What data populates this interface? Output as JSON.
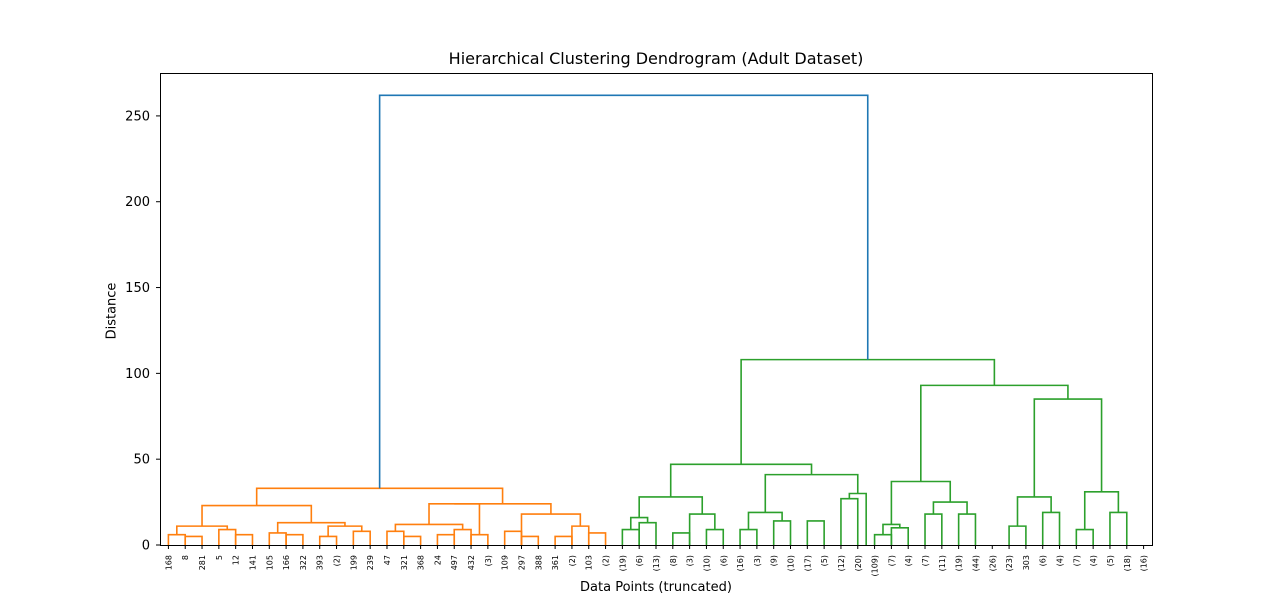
{
  "chart_data": {
    "type": "dendrogram",
    "title": "Hierarchical Clustering Dendrogram (Adult Dataset)",
    "xlabel": "Data Points (truncated)",
    "ylabel": "Distance",
    "ylim": [
      0,
      275
    ],
    "yticks": [
      0,
      50,
      100,
      150,
      200,
      250
    ],
    "grid": false,
    "leaves": [
      "168",
      "8",
      "281",
      "5",
      "12",
      "141",
      "105",
      "166",
      "322",
      "393",
      "(2)",
      "199",
      "239",
      "47",
      "321",
      "368",
      "24",
      "497",
      "432",
      "(3)",
      "109",
      "297",
      "388",
      "361",
      "(2)",
      "103",
      "(2)",
      "(19)",
      "(6)",
      "(13)",
      "(8)",
      "(3)",
      "(10)",
      "(6)",
      "(16)",
      "(3)",
      "(9)",
      "(10)",
      "(17)",
      "(5)",
      "(12)",
      "(20)",
      "(109)",
      "(7)",
      "(4)",
      "(7)",
      "(11)",
      "(19)",
      "(44)",
      "(26)",
      "(23)",
      "303",
      "(6)",
      "(4)",
      "(7)",
      "(4)",
      "(5)",
      "(18)",
      "(16)"
    ],
    "colors": {
      "left_cluster": "#ff7f0e",
      "right_cluster": "#2ca02c",
      "root": "#1f77b4"
    },
    "merges": [
      {
        "cluster": "left_cluster",
        "l": 0,
        "r": 1,
        "h": 6
      },
      {
        "cluster": "left_cluster",
        "l": 1,
        "r": 2,
        "h": 5
      },
      {
        "cluster": "left_cluster",
        "l": 3,
        "r": 4,
        "h": 9
      },
      {
        "cluster": "left_cluster",
        "l": 4,
        "r": 5,
        "h": 6
      },
      {
        "cluster": "left_cluster",
        "l": 0.5,
        "r": 3.5,
        "h": 11
      },
      {
        "cluster": "left_cluster",
        "l": 6,
        "r": 7,
        "h": 7
      },
      {
        "cluster": "left_cluster",
        "l": 7,
        "r": 8,
        "h": 6
      },
      {
        "cluster": "left_cluster",
        "l": 9,
        "r": 10,
        "h": 5
      },
      {
        "cluster": "left_cluster",
        "l": 11,
        "r": 12,
        "h": 8
      },
      {
        "cluster": "left_cluster",
        "l": 9.5,
        "r": 11.5,
        "h": 11
      },
      {
        "cluster": "left_cluster",
        "l": 6.5,
        "r": 10.5,
        "h": 13
      },
      {
        "cluster": "left_cluster",
        "l": 2,
        "r": 8.5,
        "h": 23
      },
      {
        "cluster": "left_cluster",
        "l": 13,
        "r": 14,
        "h": 8
      },
      {
        "cluster": "left_cluster",
        "l": 14,
        "r": 15,
        "h": 5
      },
      {
        "cluster": "left_cluster",
        "l": 16,
        "r": 17,
        "h": 6
      },
      {
        "cluster": "left_cluster",
        "l": 17,
        "r": 18,
        "h": 9
      },
      {
        "cluster": "left_cluster",
        "l": 13.5,
        "r": 17.5,
        "h": 12
      },
      {
        "cluster": "left_cluster",
        "l": 18,
        "r": 19,
        "h": 6
      },
      {
        "cluster": "left_cluster",
        "l": 15.5,
        "r": 18.5,
        "h": 24
      },
      {
        "cluster": "left_cluster",
        "l": 20,
        "r": 21,
        "h": 8
      },
      {
        "cluster": "left_cluster",
        "l": 21,
        "r": 22,
        "h": 5
      },
      {
        "cluster": "left_cluster",
        "l": 23,
        "r": 24,
        "h": 5
      },
      {
        "cluster": "left_cluster",
        "l": 24,
        "r": 25,
        "h": 11
      },
      {
        "cluster": "left_cluster",
        "l": 25,
        "r": 26,
        "h": 7
      },
      {
        "cluster": "left_cluster",
        "l": 21,
        "r": 24.5,
        "h": 18
      },
      {
        "cluster": "left_cluster",
        "l": 17,
        "r": 22.75,
        "h": 24
      },
      {
        "cluster": "left_cluster",
        "l": 5.25,
        "r": 19.875,
        "h": 33
      },
      {
        "cluster": "right_cluster",
        "l": 27,
        "r": 28,
        "h": 9
      },
      {
        "cluster": "right_cluster",
        "l": 28,
        "r": 29,
        "h": 13
      },
      {
        "cluster": "right_cluster",
        "l": 27.5,
        "r": 28.5,
        "h": 16
      },
      {
        "cluster": "right_cluster",
        "l": 30,
        "r": 31,
        "h": 7
      },
      {
        "cluster": "right_cluster",
        "l": 32,
        "r": 33,
        "h": 9
      },
      {
        "cluster": "right_cluster",
        "l": 31,
        "r": 32.5,
        "h": 18
      },
      {
        "cluster": "right_cluster",
        "l": 28,
        "r": 31.75,
        "h": 28
      },
      {
        "cluster": "right_cluster",
        "l": 34,
        "r": 35,
        "h": 9
      },
      {
        "cluster": "right_cluster",
        "l": 36,
        "r": 37,
        "h": 14
      },
      {
        "cluster": "right_cluster",
        "l": 34.5,
        "r": 36.5,
        "h": 19
      },
      {
        "cluster": "right_cluster",
        "l": 38,
        "r": 39,
        "h": 14
      },
      {
        "cluster": "right_cluster",
        "l": 40,
        "r": 41,
        "h": 27
      },
      {
        "cluster": "right_cluster",
        "l": 40.5,
        "r": 41.5,
        "h": 30
      },
      {
        "cluster": "right_cluster",
        "l": 35.5,
        "r": 41,
        "h": 41
      },
      {
        "cluster": "right_cluster",
        "l": 29.875,
        "r": 38.25,
        "h": 47
      },
      {
        "cluster": "right_cluster",
        "l": 42,
        "r": 43,
        "h": 6
      },
      {
        "cluster": "right_cluster",
        "l": 43,
        "r": 44,
        "h": 10
      },
      {
        "cluster": "right_cluster",
        "l": 42.5,
        "r": 43.5,
        "h": 12
      },
      {
        "cluster": "right_cluster",
        "l": 45,
        "r": 46,
        "h": 18
      },
      {
        "cluster": "right_cluster",
        "l": 47,
        "r": 48,
        "h": 18
      },
      {
        "cluster": "right_cluster",
        "l": 45.5,
        "r": 47.5,
        "h": 25
      },
      {
        "cluster": "right_cluster",
        "l": 43,
        "r": 46.5,
        "h": 37
      },
      {
        "cluster": "right_cluster",
        "l": 50,
        "r": 51,
        "h": 11
      },
      {
        "cluster": "right_cluster",
        "l": 52,
        "r": 53,
        "h": 19
      },
      {
        "cluster": "right_cluster",
        "l": 50.5,
        "r": 52.5,
        "h": 28
      },
      {
        "cluster": "right_cluster",
        "l": 54,
        "r": 55,
        "h": 9
      },
      {
        "cluster": "right_cluster",
        "l": 56,
        "r": 57,
        "h": 19
      },
      {
        "cluster": "right_cluster",
        "l": 54.5,
        "r": 56.5,
        "h": 31
      },
      {
        "cluster": "right_cluster",
        "l": 51.5,
        "r": 55.5,
        "h": 85
      },
      {
        "cluster": "right_cluster",
        "l": 44.75,
        "r": 53.5,
        "h": 93
      },
      {
        "cluster": "right_cluster",
        "l": 34.0625,
        "r": 49.125,
        "h": 108
      },
      {
        "cluster": "root",
        "l": 12.5625,
        "r": 41.59375,
        "h": 262
      }
    ]
  }
}
